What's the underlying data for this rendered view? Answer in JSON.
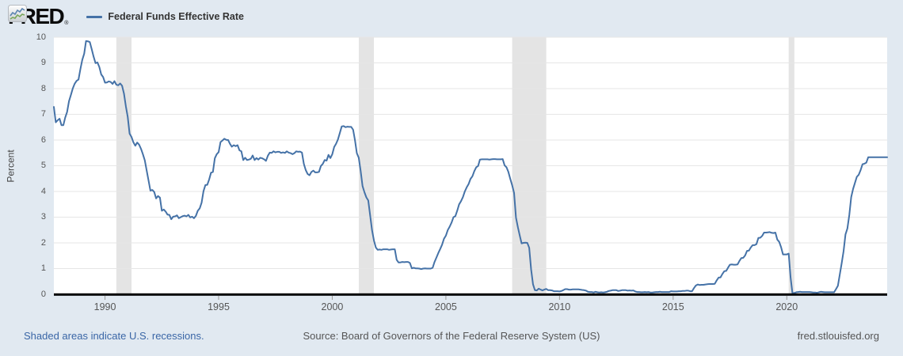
{
  "header": {
    "logo_text": "FRED",
    "registered_mark": "®",
    "legend": {
      "label": "Federal Funds Effective Rate",
      "swatch_color": "#4572a7"
    }
  },
  "footer": {
    "recession_note": "Shaded areas indicate U.S. recessions.",
    "source": "Source: Board of Governors of the Federal Reserve System (US)",
    "site": "fred.stlouisfed.org"
  },
  "colors": {
    "background": "#e1e9f1",
    "plot_background": "#ffffff",
    "gridline": "#e6e6e6",
    "recession_band": "#e4e4e4",
    "line": "#4572a7",
    "axis": "#000000",
    "tick_mark": "#999999",
    "tick_text": "#555555",
    "link_blue": "#3a66a6",
    "footer_text": "#555555"
  },
  "chart_data": {
    "type": "line",
    "title": "Federal Funds Effective Rate",
    "xlabel": "",
    "ylabel": "Percent",
    "ylim": [
      0,
      10
    ],
    "y_ticks": [
      0,
      1,
      2,
      3,
      4,
      5,
      6,
      7,
      8,
      9,
      10
    ],
    "x_ticks": [
      1990,
      1995,
      2000,
      2005,
      2010,
      2015,
      2020
    ],
    "x_domain_decimal_years": [
      1987.75,
      2024.417
    ],
    "grid": true,
    "legend_position": "top-left",
    "recessions": [
      {
        "start": 1990.5,
        "end": 1991.167
      },
      {
        "start": 2001.167,
        "end": 2001.833
      },
      {
        "start": 2007.917,
        "end": 2009.417
      },
      {
        "start": 2020.083,
        "end": 2020.333
      }
    ],
    "series": [
      {
        "name": "Federal Funds Effective Rate",
        "unit": "percent",
        "start": "1987-10",
        "frequency": "monthly",
        "values": [
          7.29,
          6.69,
          6.77,
          6.83,
          6.58,
          6.58,
          6.87,
          7.09,
          7.51,
          7.75,
          8.01,
          8.19,
          8.3,
          8.35,
          8.76,
          9.12,
          9.36,
          9.85,
          9.84,
          9.81,
          9.53,
          9.24,
          8.99,
          9.02,
          8.84,
          8.55,
          8.45,
          8.23,
          8.24,
          8.28,
          8.26,
          8.18,
          8.29,
          8.15,
          8.13,
          8.2,
          8.11,
          7.81,
          7.31,
          6.91,
          6.25,
          6.12,
          5.91,
          5.78,
          5.9,
          5.82,
          5.66,
          5.45,
          5.21,
          4.81,
          4.43,
          4.03,
          4.06,
          3.98,
          3.73,
          3.82,
          3.76,
          3.25,
          3.3,
          3.22,
          3.1,
          3.09,
          2.92,
          3.02,
          3.03,
          3.07,
          2.96,
          3.0,
          3.04,
          3.06,
          3.03,
          3.09,
          2.99,
          3.02,
          2.96,
          3.05,
          3.25,
          3.34,
          3.56,
          4.01,
          4.25,
          4.26,
          4.47,
          4.73,
          4.76,
          5.29,
          5.45,
          5.53,
          5.92,
          5.98,
          6.05,
          6.01,
          6.0,
          5.85,
          5.74,
          5.8,
          5.76,
          5.8,
          5.6,
          5.56,
          5.22,
          5.31,
          5.22,
          5.24,
          5.27,
          5.4,
          5.22,
          5.3,
          5.24,
          5.31,
          5.29,
          5.25,
          5.19,
          5.39,
          5.51,
          5.5,
          5.56,
          5.52,
          5.54,
          5.54,
          5.5,
          5.52,
          5.5,
          5.56,
          5.51,
          5.49,
          5.45,
          5.49,
          5.56,
          5.54,
          5.55,
          5.51,
          5.07,
          4.83,
          4.68,
          4.63,
          4.76,
          4.81,
          4.74,
          4.74,
          4.76,
          4.99,
          5.07,
          5.22,
          5.2,
          5.42,
          5.3,
          5.45,
          5.73,
          5.85,
          6.02,
          6.27,
          6.53,
          6.54,
          6.5,
          6.52,
          6.51,
          6.51,
          6.4,
          5.98,
          5.49,
          5.31,
          4.8,
          4.21,
          3.97,
          3.77,
          3.65,
          3.07,
          2.49,
          2.09,
          1.82,
          1.73,
          1.74,
          1.73,
          1.75,
          1.75,
          1.75,
          1.73,
          1.74,
          1.75,
          1.75,
          1.34,
          1.24,
          1.24,
          1.26,
          1.25,
          1.26,
          1.26,
          1.22,
          1.01,
          1.03,
          1.01,
          1.01,
          1.0,
          0.98,
          1.0,
          1.01,
          1.0,
          1.0,
          1.0,
          1.03,
          1.26,
          1.43,
          1.61,
          1.76,
          1.93,
          2.16,
          2.28,
          2.5,
          2.63,
          2.79,
          3.0,
          3.04,
          3.26,
          3.5,
          3.62,
          3.78,
          4.0,
          4.16,
          4.29,
          4.49,
          4.59,
          4.79,
          4.94,
          4.99,
          5.24,
          5.25,
          5.25,
          5.25,
          5.25,
          5.24,
          5.25,
          5.26,
          5.26,
          5.25,
          5.25,
          5.25,
          5.26,
          5.02,
          4.94,
          4.76,
          4.49,
          4.24,
          3.94,
          2.98,
          2.61,
          2.28,
          1.98,
          2.0,
          2.01,
          2.0,
          1.81,
          0.97,
          0.39,
          0.16,
          0.15,
          0.22,
          0.18,
          0.15,
          0.18,
          0.21,
          0.16,
          0.16,
          0.15,
          0.12,
          0.12,
          0.12,
          0.11,
          0.13,
          0.16,
          0.2,
          0.2,
          0.18,
          0.18,
          0.19,
          0.19,
          0.19,
          0.19,
          0.18,
          0.17,
          0.16,
          0.14,
          0.1,
          0.09,
          0.09,
          0.07,
          0.1,
          0.08,
          0.07,
          0.08,
          0.07,
          0.08,
          0.1,
          0.13,
          0.14,
          0.16,
          0.16,
          0.16,
          0.13,
          0.14,
          0.16,
          0.16,
          0.16,
          0.14,
          0.15,
          0.14,
          0.15,
          0.11,
          0.09,
          0.09,
          0.08,
          0.08,
          0.09,
          0.08,
          0.09,
          0.07,
          0.07,
          0.08,
          0.09,
          0.09,
          0.1,
          0.09,
          0.09,
          0.09,
          0.09,
          0.09,
          0.12,
          0.11,
          0.11,
          0.11,
          0.12,
          0.12,
          0.13,
          0.13,
          0.14,
          0.14,
          0.12,
          0.12,
          0.24,
          0.34,
          0.38,
          0.36,
          0.37,
          0.37,
          0.38,
          0.39,
          0.4,
          0.4,
          0.4,
          0.41,
          0.54,
          0.65,
          0.66,
          0.79,
          0.9,
          0.91,
          1.04,
          1.15,
          1.16,
          1.15,
          1.15,
          1.16,
          1.3,
          1.41,
          1.42,
          1.51,
          1.69,
          1.7,
          1.82,
          1.91,
          1.91,
          1.95,
          2.19,
          2.2,
          2.27,
          2.4,
          2.4,
          2.41,
          2.42,
          2.39,
          2.38,
          2.4,
          2.13,
          2.04,
          1.83,
          1.55,
          1.55,
          1.55,
          1.58,
          0.65,
          0.05,
          0.05,
          0.08,
          0.09,
          0.1,
          0.09,
          0.09,
          0.09,
          0.09,
          0.09,
          0.08,
          0.07,
          0.07,
          0.06,
          0.08,
          0.1,
          0.09,
          0.08,
          0.08,
          0.08,
          0.08,
          0.08,
          0.08,
          0.2,
          0.33,
          0.77,
          1.21,
          1.68,
          2.33,
          2.56,
          3.08,
          3.78,
          4.1,
          4.33,
          4.57,
          4.65,
          4.83,
          5.06,
          5.08,
          5.12,
          5.33,
          5.33,
          5.33,
          5.33,
          5.33,
          5.33,
          5.33,
          5.33,
          5.33,
          5.33,
          5.33
        ]
      }
    ]
  }
}
